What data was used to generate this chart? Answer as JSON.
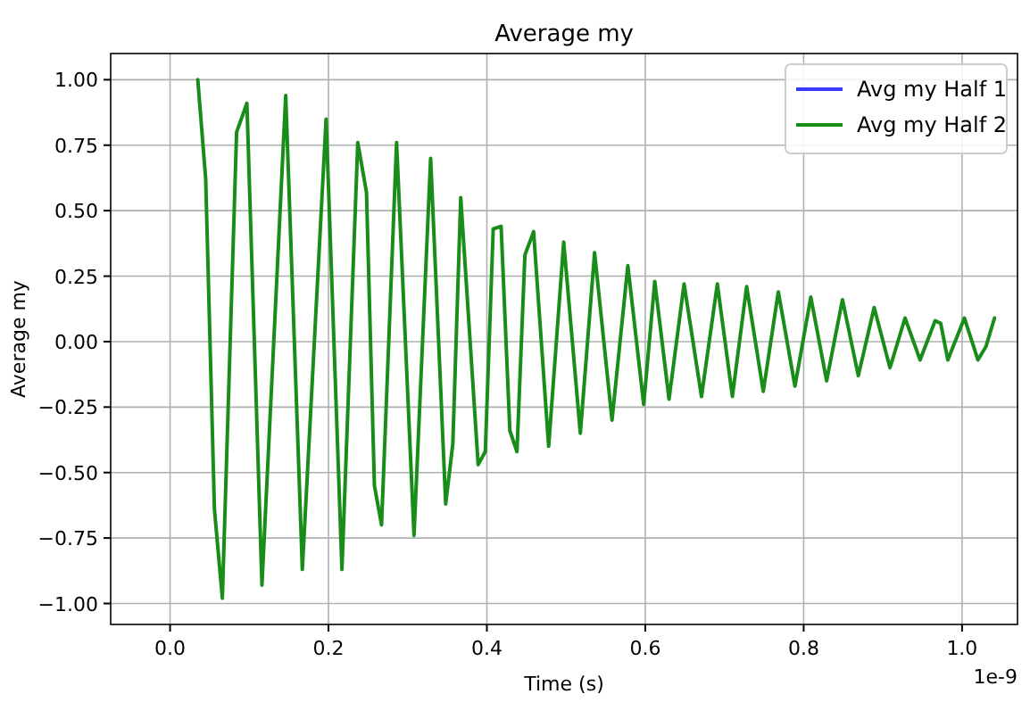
{
  "chart_data": {
    "type": "line",
    "title": "Average my",
    "xlabel": "Time (s)",
    "ylabel": "Average my",
    "x": [
      0.035,
      0.045,
      0.056,
      0.066,
      0.084,
      0.097,
      0.116,
      0.146,
      0.167,
      0.197,
      0.217,
      0.237,
      0.248,
      0.258,
      0.267,
      0.286,
      0.308,
      0.329,
      0.348,
      0.357,
      0.367,
      0.389,
      0.398,
      0.408,
      0.418,
      0.429,
      0.438,
      0.448,
      0.459,
      0.478,
      0.497,
      0.518,
      0.536,
      0.558,
      0.578,
      0.598,
      0.612,
      0.63,
      0.649,
      0.671,
      0.691,
      0.71,
      0.728,
      0.749,
      0.768,
      0.789,
      0.809,
      0.829,
      0.849,
      0.869,
      0.889,
      0.909,
      0.928,
      0.947,
      0.966,
      0.973,
      0.982,
      1.003,
      1.02,
      1.03,
      1.041
    ],
    "series": [
      {
        "name": "Avg my Half 1",
        "color": "#3a3aff",
        "values": [
          null,
          null,
          null,
          null,
          null,
          null,
          null,
          null,
          null,
          null,
          null,
          null,
          null,
          null,
          null,
          null,
          null,
          null,
          null,
          null,
          null,
          null,
          null,
          null,
          null,
          null,
          null,
          null,
          null,
          null,
          null,
          null,
          null,
          null,
          null,
          null,
          null,
          null,
          null,
          null,
          null,
          null,
          null,
          null,
          null,
          null,
          null,
          null,
          null,
          null,
          null,
          null,
          null,
          null,
          null,
          null,
          null,
          null,
          null,
          null,
          null
        ]
      },
      {
        "name": "Avg my Half 2",
        "color": "#1a8c1a",
        "values": [
          1.0,
          0.62,
          -0.64,
          -0.98,
          0.8,
          0.91,
          -0.93,
          0.94,
          -0.87,
          0.85,
          -0.87,
          0.76,
          0.57,
          -0.55,
          -0.7,
          0.76,
          -0.74,
          0.7,
          -0.62,
          -0.39,
          0.55,
          -0.47,
          -0.42,
          0.43,
          0.44,
          -0.34,
          -0.42,
          0.33,
          0.42,
          -0.4,
          0.38,
          -0.35,
          0.34,
          -0.3,
          0.29,
          -0.24,
          0.23,
          -0.22,
          0.22,
          -0.21,
          0.22,
          -0.21,
          0.21,
          -0.19,
          0.19,
          -0.17,
          0.17,
          -0.15,
          0.16,
          -0.13,
          0.13,
          -0.1,
          0.09,
          -0.07,
          0.08,
          0.07,
          -0.07,
          0.09,
          -0.07,
          -0.02,
          0.09
        ]
      }
    ],
    "xlim": [
      -0.075,
      1.07
    ],
    "xticks": [
      {
        "value": 0,
        "label": "0.0"
      },
      0.2,
      0.4,
      0.6,
      0.8,
      {
        "value": 1,
        "label": "1.0"
      }
    ],
    "ylim": [
      -1.08,
      1.1
    ],
    "yticks": [
      {
        "value": -1,
        "label": "−1.00"
      },
      {
        "value": -0.75,
        "label": "−0.75"
      },
      {
        "value": -0.5,
        "label": "−0.50"
      },
      {
        "value": -0.25,
        "label": "−0.25"
      },
      {
        "value": 0,
        "label": "0.00"
      },
      {
        "value": 0.25,
        "label": "0.25"
      },
      {
        "value": 0.5,
        "label": "0.50"
      },
      {
        "value": 0.75,
        "label": "0.75"
      },
      {
        "value": 1,
        "label": "1.00"
      }
    ],
    "annotations": [
      "1e-9"
    ],
    "grid": true,
    "legend": "top right",
    "marker": "none",
    "line_style": "solid"
  }
}
